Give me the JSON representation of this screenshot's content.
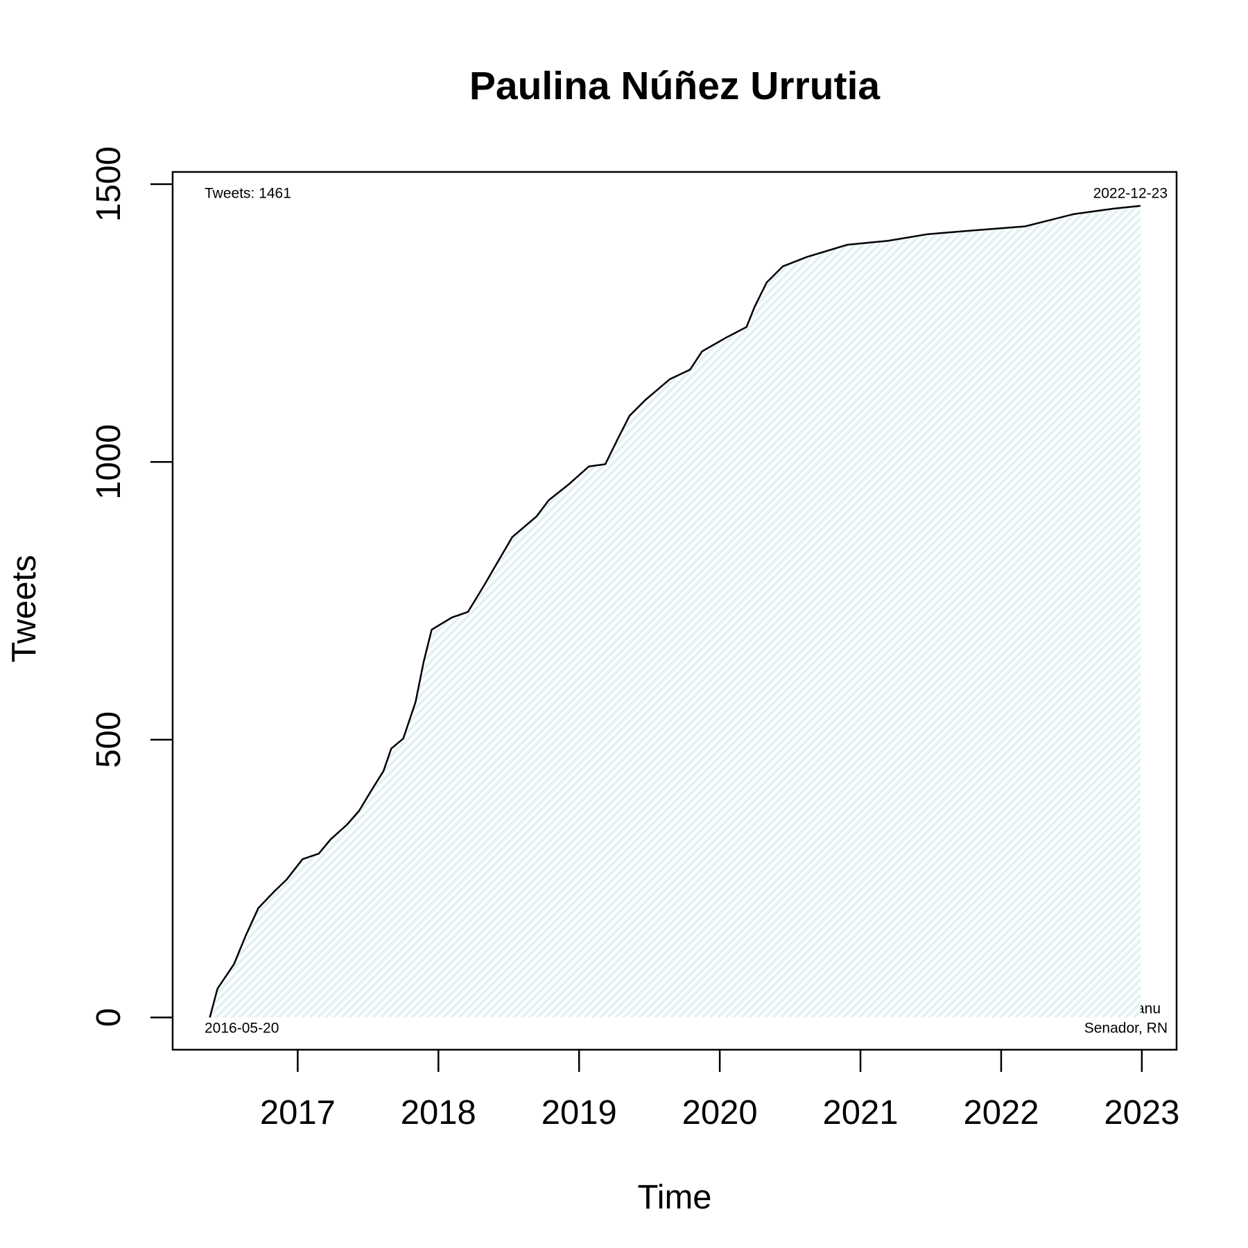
{
  "chart_data": {
    "type": "area",
    "title": "Paulina Núñez Urrutia",
    "x_label": "Time",
    "y_label": "Tweets",
    "annotations": [
      "Tweets: 1461",
      "2022-12-23",
      "2016-05-20",
      "@paulinanu",
      "Senador, RN"
    ],
    "series": [
      {
        "name": "Tweets",
        "color": "#000000",
        "fill": "#e4f1f4",
        "x": [
          2016.375,
          2016.43,
          2016.547,
          2016.63,
          2016.72,
          2016.834,
          2016.92,
          2017.034,
          2017.15,
          2017.235,
          2017.35,
          2017.436,
          2017.522,
          2017.61,
          2017.665,
          2017.75,
          2017.838,
          2017.895,
          2017.952,
          2018.096,
          2018.21,
          2018.325,
          2018.41,
          2018.526,
          2018.698,
          2018.784,
          2018.928,
          2019.07,
          2019.186,
          2019.272,
          2019.358,
          2019.473,
          2019.645,
          2019.788,
          2019.874,
          2020.046,
          2020.19,
          2020.247,
          2020.333,
          2020.448,
          2020.62,
          2020.907,
          2021.194,
          2021.48,
          2021.768,
          2022.17,
          2022.513,
          2022.8,
          2022.99
        ],
        "values": [
          0,
          52,
          96,
          147,
          197,
          227,
          248,
          285,
          295,
          321,
          347,
          372,
          408,
          444,
          484,
          502,
          568,
          640,
          698,
          720,
          730,
          778,
          815,
          865,
          902,
          931,
          960,
          992,
          996,
          1040,
          1083,
          1112,
          1149,
          1166,
          1199,
          1224,
          1243,
          1279,
          1323,
          1352,
          1369,
          1391,
          1398,
          1410,
          1416,
          1424,
          1446,
          1456,
          1461
        ]
      }
    ],
    "xlim": [
      2016.111,
      2023.247
    ],
    "xticks": [
      2017,
      2018,
      2019,
      2020,
      2021,
      2022,
      2023
    ],
    "ylim": [
      -58,
      1522
    ],
    "yticks": [
      0,
      500,
      1000,
      1500
    ]
  }
}
